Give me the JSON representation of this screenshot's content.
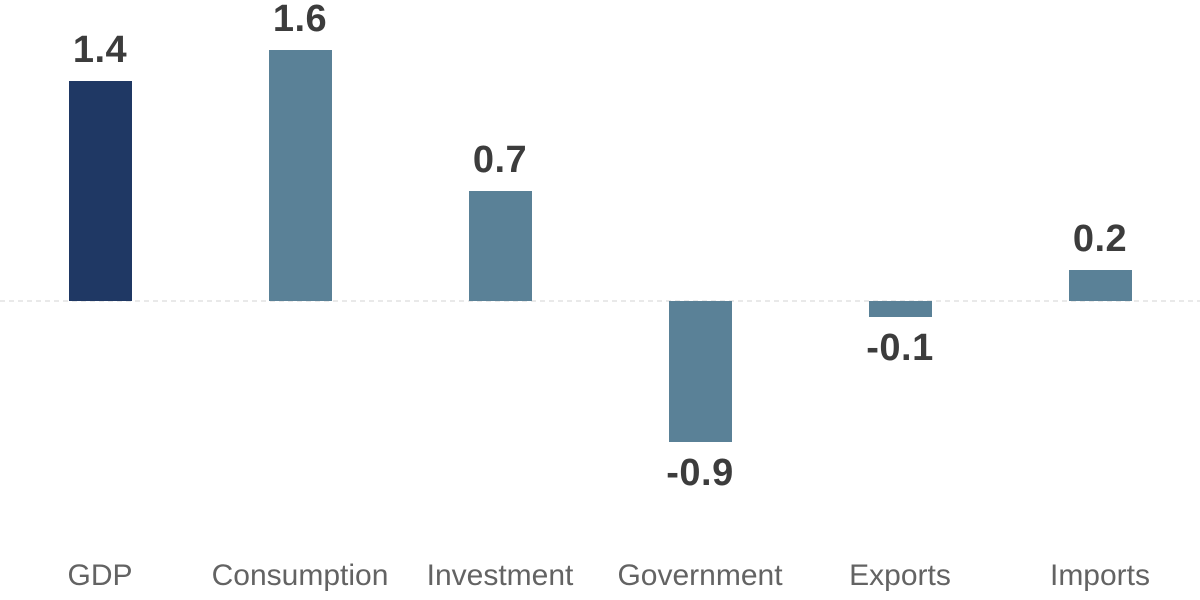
{
  "chart_data": {
    "type": "bar",
    "title": "",
    "categories": [
      "GDP",
      "Consumption",
      "Investment",
      "Government",
      "Exports",
      "Imports"
    ],
    "values": [
      1.4,
      1.6,
      0.7,
      -0.9,
      -0.1,
      0.2
    ],
    "data_labels": [
      "1.4",
      "1.6",
      "0.7",
      "-0.9",
      "-0.1",
      "0.2"
    ],
    "bar_colors": [
      "#1F3864",
      "#5A8197",
      "#5A8197",
      "#5A8197",
      "#5A8197",
      "#5A8197"
    ],
    "xlabel": "",
    "ylabel": "",
    "ylim": [
      -1.9,
      1.9
    ],
    "grid": false,
    "legend": false,
    "zero_baseline": {
      "style": "dashed",
      "color": "#E9E9E9"
    }
  },
  "colors": {
    "background": "#FFFFFF",
    "highlight_bar": "#1F3864",
    "default_bar": "#5A8197",
    "value_label": "#3C3C3C",
    "category_label": "#636363",
    "baseline": "#E9E9E9"
  }
}
